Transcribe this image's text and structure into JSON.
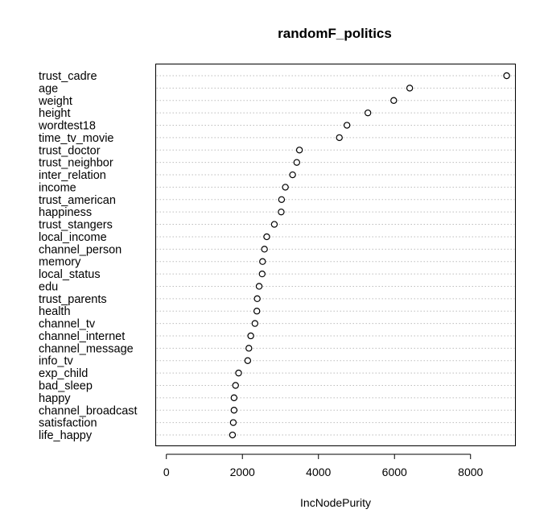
{
  "chart_data": {
    "type": "scatter",
    "title": "randomF_politics",
    "xlabel": "IncNodePurity",
    "ylabel": "",
    "xlim": [
      -280,
      9180
    ],
    "xticks": [
      0,
      2000,
      4000,
      6000,
      8000
    ],
    "grid": "horizontal dotted",
    "legend": "none",
    "categories": [
      "trust_cadre",
      "age",
      "weight",
      "height",
      "wordtest18",
      "time_tv_movie",
      "trust_doctor",
      "trust_neighbor",
      "inter_relation",
      "income",
      "trust_american",
      "happiness",
      "trust_stangers",
      "local_income",
      "channel_person",
      "memory",
      "local_status",
      "edu",
      "trust_parents",
      "health",
      "channel_tv",
      "channel_internet",
      "channel_message",
      "info_tv",
      "exp_child",
      "bad_sleep",
      "happy",
      "channel_broadcast",
      "satisfaction",
      "life_happy"
    ],
    "values": [
      8950,
      6400,
      5980,
      5300,
      4750,
      4550,
      3500,
      3430,
      3320,
      3130,
      3030,
      3020,
      2840,
      2640,
      2580,
      2530,
      2520,
      2440,
      2390,
      2380,
      2330,
      2220,
      2170,
      2140,
      1900,
      1820,
      1780,
      1780,
      1760,
      1740
    ]
  }
}
